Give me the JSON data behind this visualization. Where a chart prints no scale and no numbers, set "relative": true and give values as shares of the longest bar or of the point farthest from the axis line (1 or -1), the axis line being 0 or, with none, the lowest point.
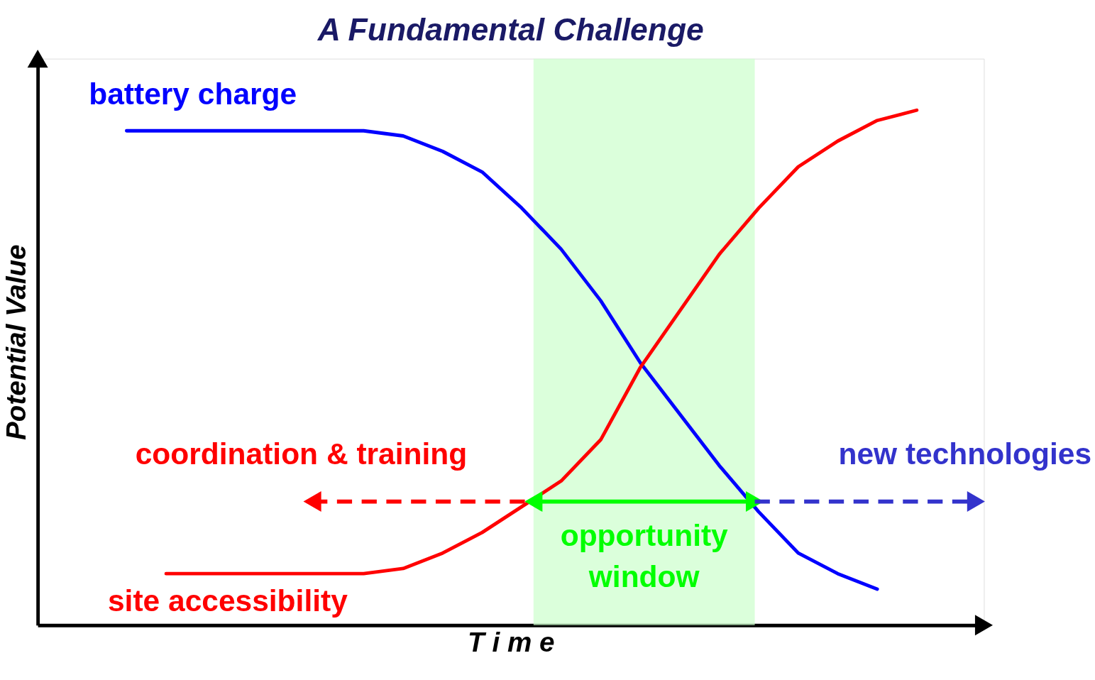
{
  "chart_data": {
    "type": "line",
    "title": "A Fundamental Challenge",
    "xlabel": "T i m e",
    "ylabel": "Potential Value",
    "relative": true,
    "legend": false,
    "tick_labels": false,
    "grid": false,
    "marker": "none",
    "line_style": "solid",
    "categories": [
      null,
      null,
      null,
      null,
      null,
      null,
      null,
      null,
      null,
      null,
      null,
      null,
      null,
      null,
      null,
      null,
      null,
      null,
      null,
      null,
      null
    ],
    "series": [
      {
        "name": "battery charge",
        "color": "#0000ff",
        "values": [
          0.96,
          0.96,
          0.96,
          0.96,
          0.96,
          0.96,
          0.96,
          0.95,
          0.92,
          0.88,
          0.81,
          0.73,
          0.63,
          0.51,
          0.41,
          0.31,
          0.22,
          0.14,
          0.1,
          0.07,
          null
        ]
      },
      {
        "name": "site accessibility",
        "color": "#ff0000",
        "values": [
          null,
          0.1,
          0.1,
          0.1,
          0.1,
          0.1,
          0.1,
          0.11,
          0.14,
          0.18,
          0.23,
          0.28,
          0.36,
          0.5,
          0.61,
          0.72,
          0.81,
          0.89,
          0.94,
          0.98,
          1.0
        ]
      }
    ],
    "annotations": [
      "coordination & training",
      "new technologies",
      "opportunity\nwindow"
    ]
  }
}
